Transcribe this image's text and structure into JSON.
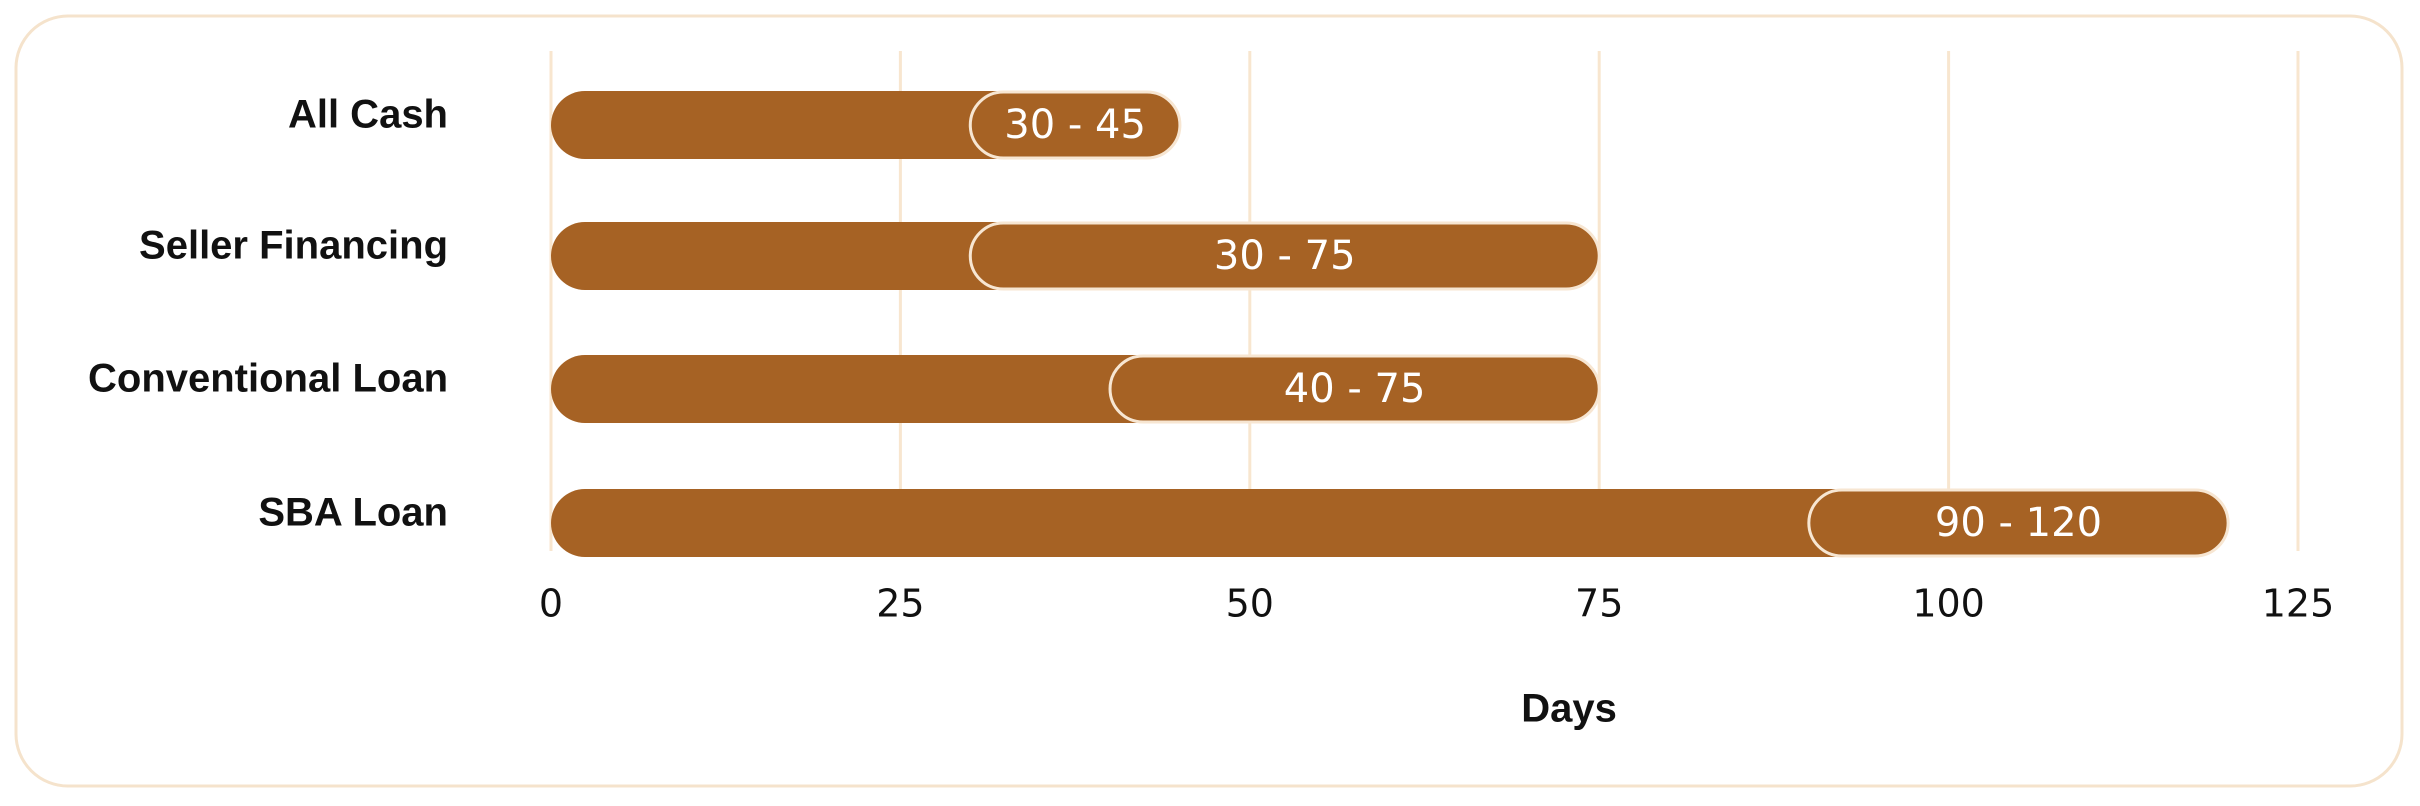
{
  "chart_data": {
    "type": "range-bar",
    "categories": [
      "All Cash",
      "Seller Financing",
      "Conventional Loan",
      "SBA Loan"
    ],
    "low": [
      30,
      30,
      40,
      90
    ],
    "high": [
      45,
      75,
      75,
      120
    ],
    "value_labels": [
      "30 - 45",
      "30 - 75",
      "40 - 75",
      "90 - 120"
    ],
    "color": "#a66224",
    "xlabel": "Days",
    "xlim": [
      0,
      125
    ],
    "xticks": [
      0,
      25,
      50,
      75,
      100,
      125
    ],
    "grid": true
  }
}
